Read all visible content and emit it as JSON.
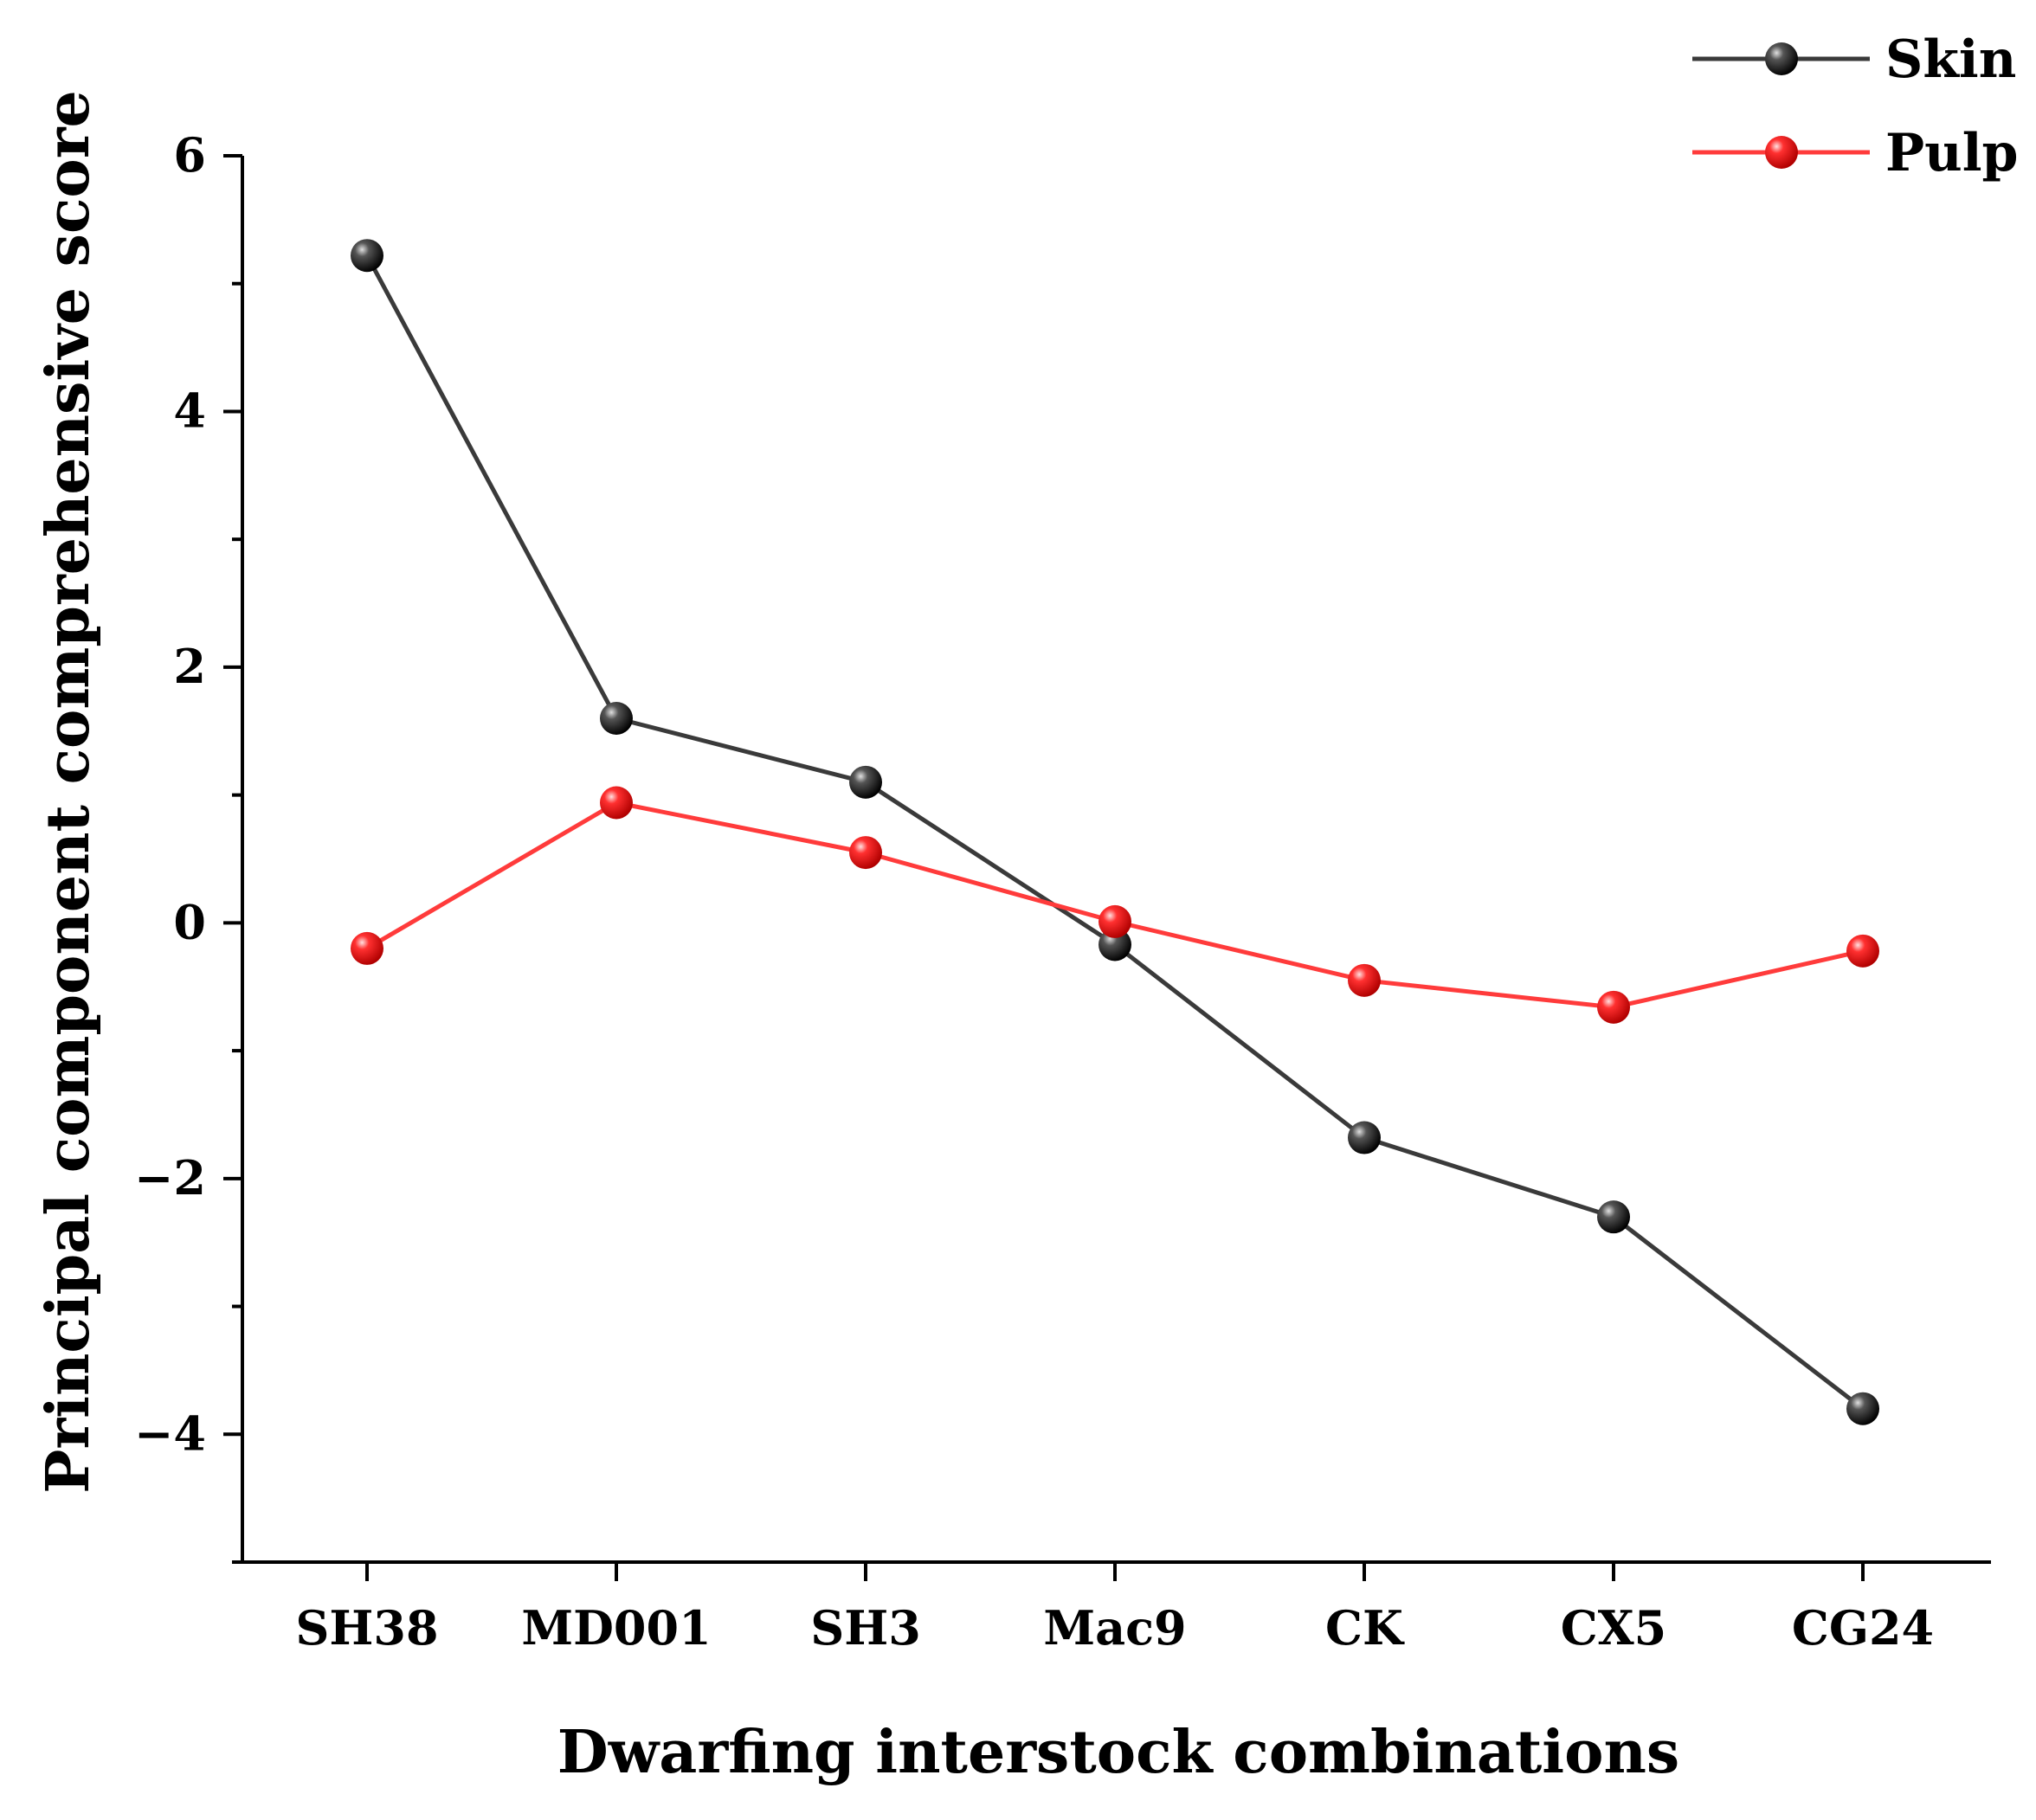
{
  "chart_data": {
    "type": "line",
    "title": "",
    "xlabel": "Dwarfing interstock combinations",
    "ylabel": "Principal component comprehensive score",
    "categories": [
      "SH38",
      "MD001",
      "SH3",
      "Mac9",
      "CK",
      "CX5",
      "CG24"
    ],
    "ylim": [
      -5,
      6
    ],
    "yticks": [
      -4,
      -2,
      0,
      2,
      4,
      6
    ],
    "ytick_labels": [
      "−4",
      "−2",
      "0",
      "2",
      "4",
      "6"
    ],
    "minor_yticks": [
      -5,
      -3,
      -1,
      1,
      3,
      5
    ],
    "grid": false,
    "legend_position": "top-right",
    "series": [
      {
        "name": "Skin",
        "color": "#3a3a3a",
        "marker_color": "#000000",
        "values": [
          5.22,
          1.6,
          1.1,
          -0.17,
          -1.68,
          -2.3,
          -3.8
        ]
      },
      {
        "name": "Pulp",
        "color": "#ff3b3b",
        "marker_color": "#ff0000",
        "values": [
          -0.2,
          0.94,
          0.55,
          0.01,
          -0.45,
          -0.66,
          -0.22
        ]
      }
    ]
  }
}
